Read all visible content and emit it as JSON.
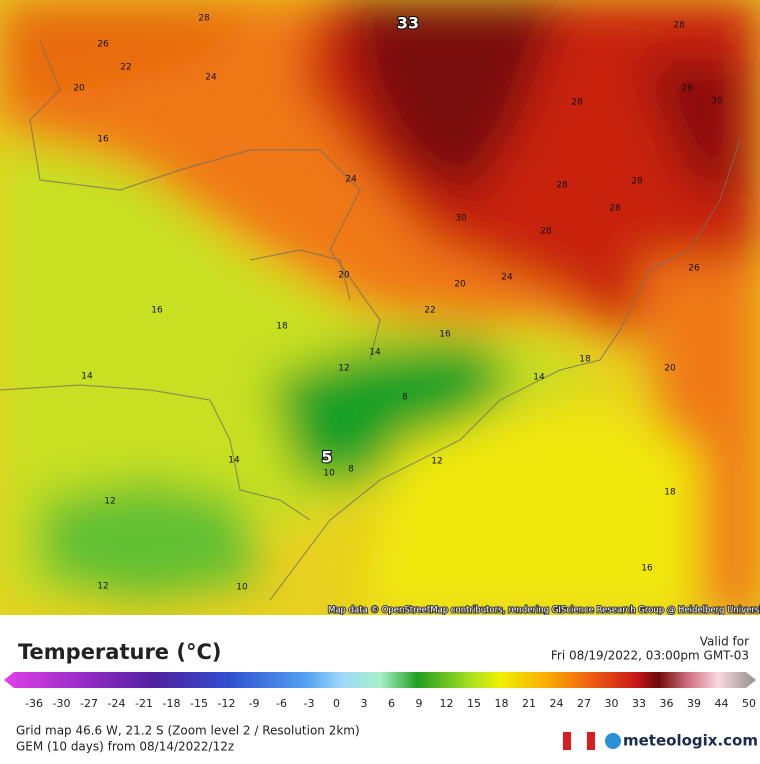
{
  "map": {
    "contour_labels": [
      "28",
      "33",
      "26",
      "28",
      "22",
      "24",
      "28",
      "20",
      "30",
      "28",
      "16",
      "24",
      "28",
      "28",
      "28",
      "30",
      "28",
      "26",
      "20",
      "24",
      "20",
      "22",
      "16",
      "18",
      "16",
      "14",
      "18",
      "12",
      "20",
      "14",
      "14",
      "8",
      "14",
      "5",
      "12",
      "10",
      "8",
      "18",
      "12",
      "16",
      "12",
      "10"
    ],
    "attribution": "Map data © OpenStreetMap contributors, rendering GIScience Research Group @ Heidelberg University"
  },
  "header": {
    "title": "Temperature (°C)",
    "valid_label": "Valid for",
    "valid_time": "Fri 08/19/2022, 03:00pm GMT-03"
  },
  "legend": {
    "ticks": [
      -36,
      -30,
      -27,
      -24,
      -21,
      -18,
      -15,
      -12,
      -9,
      -6,
      -3,
      0,
      3,
      6,
      9,
      12,
      15,
      18,
      21,
      24,
      27,
      30,
      33,
      36,
      39,
      44,
      50
    ]
  },
  "footer": {
    "grid": "Grid map 46.6 W, 21.2 S (Zoom level 2 / Resolution 2km)",
    "model": "GEM (10 days) from 08/14/2022/12z",
    "brand": "meteologix.com"
  }
}
